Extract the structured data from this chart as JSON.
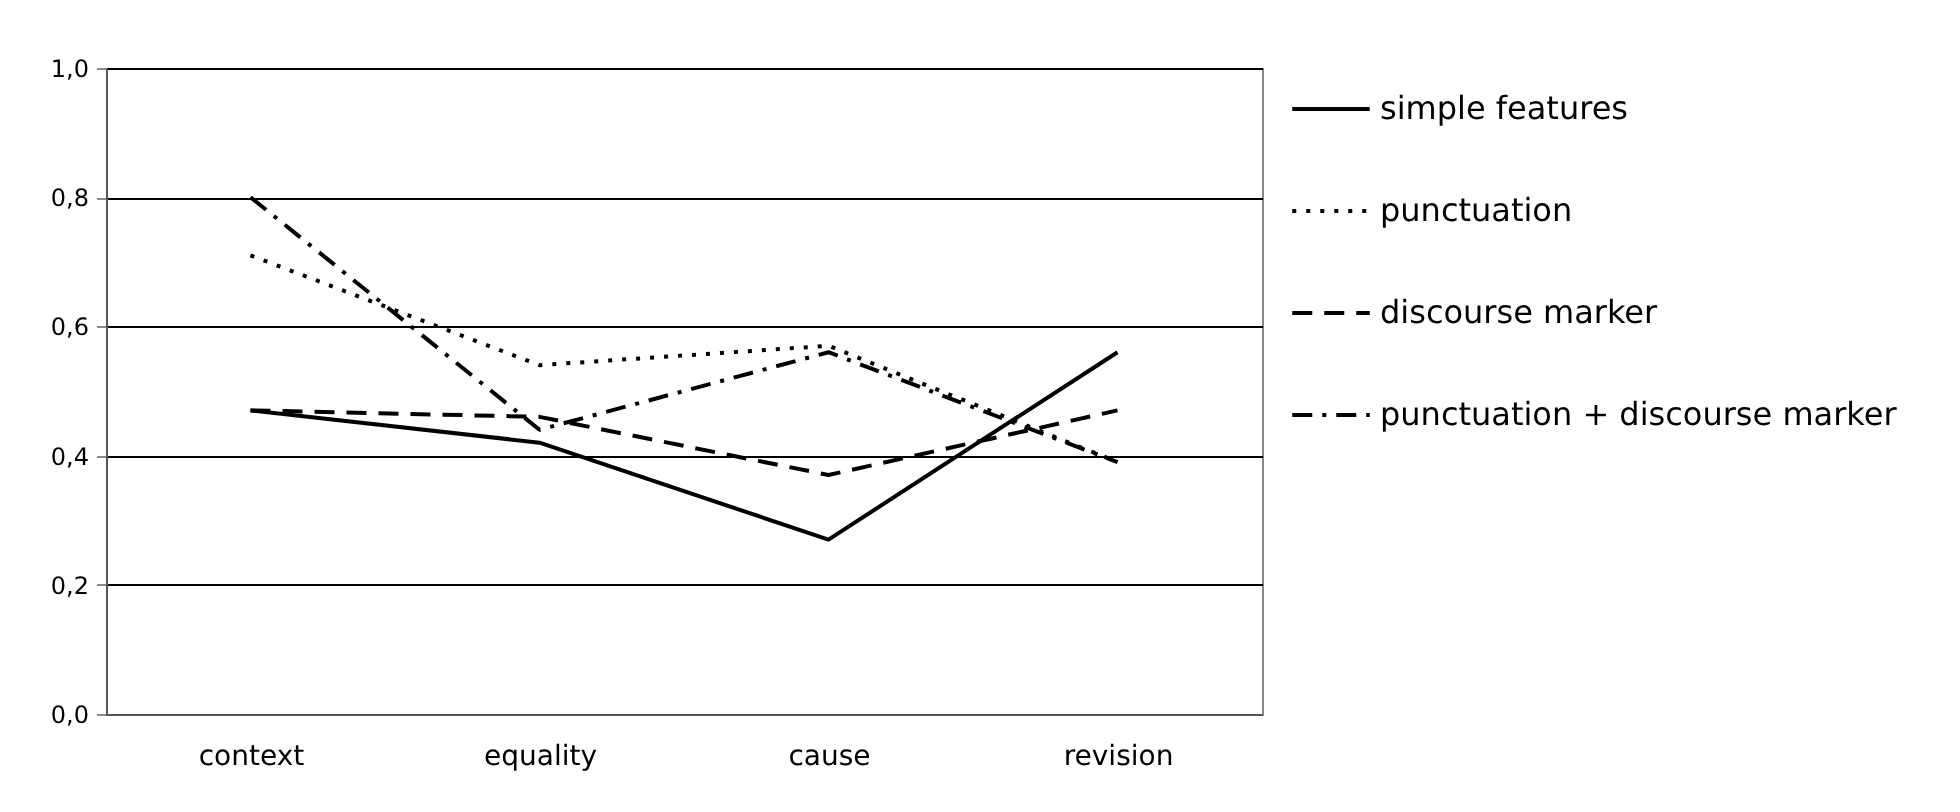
{
  "chart_data": {
    "type": "line",
    "categories": [
      "context",
      "equality",
      "cause",
      "revision"
    ],
    "series": [
      {
        "name": "simple features",
        "color": "#000000",
        "line_style": "solid",
        "values": [
          0.47,
          0.42,
          0.27,
          0.56
        ]
      },
      {
        "name": "punctuation",
        "color": "#000000",
        "line_style": "dotted",
        "values": [
          0.71,
          0.54,
          0.57,
          0.39
        ]
      },
      {
        "name": "discourse marker",
        "color": "#000000",
        "line_style": "dashed",
        "values": [
          0.47,
          0.46,
          0.37,
          0.47
        ]
      },
      {
        "name": "punctuation + discourse marker",
        "color": "#000000",
        "line_style": "dashdot",
        "values": [
          0.8,
          0.44,
          0.56,
          0.39
        ]
      }
    ],
    "ylim": [
      0,
      1
    ],
    "yticks": [
      {
        "value": 0,
        "label": "0,0"
      },
      {
        "value": 0.2,
        "label": "0,2"
      },
      {
        "value": 0.4,
        "label": "0,4"
      },
      {
        "value": 0.6,
        "label": "0,6"
      },
      {
        "value": 0.8,
        "label": "0,8"
      },
      {
        "value": 1,
        "label": "1,0"
      }
    ],
    "grid": "y",
    "legend": "right",
    "marker": "none"
  }
}
